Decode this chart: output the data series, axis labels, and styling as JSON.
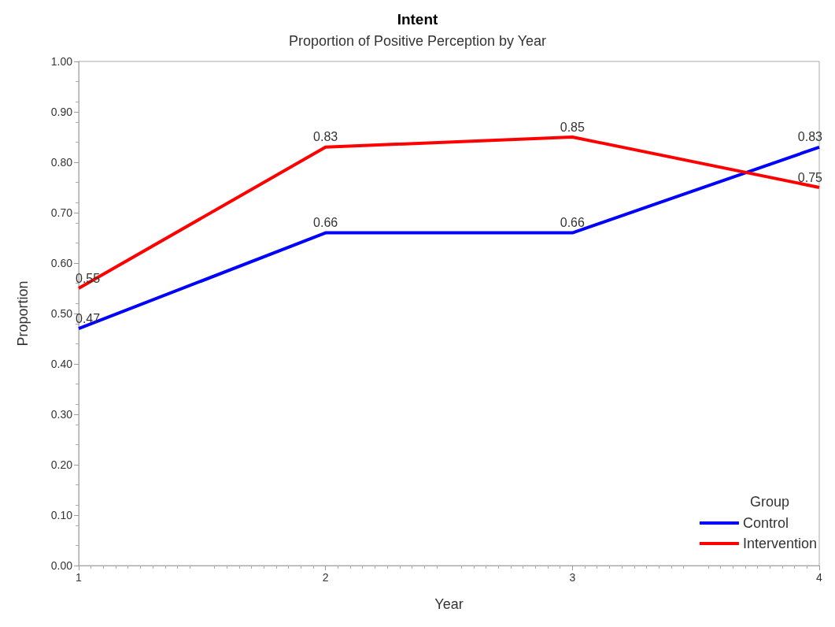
{
  "chart_data": {
    "type": "line",
    "title": "Intent",
    "subtitle": "Proportion of Positive Perception by Year",
    "xlabel": "Year",
    "ylabel": "Proportion",
    "legend_title": "Group",
    "x": [
      1,
      2,
      3,
      4
    ],
    "series": [
      {
        "name": "Control",
        "color": "#0000ff",
        "values": [
          0.47,
          0.66,
          0.66,
          0.83
        ]
      },
      {
        "name": "Intervention",
        "color": "#ff0000",
        "values": [
          0.55,
          0.83,
          0.85,
          0.75
        ]
      }
    ],
    "xlim": [
      1,
      4
    ],
    "xticks": [
      1,
      2,
      3,
      4
    ],
    "ylim": [
      0,
      1
    ],
    "yticks": [
      {
        "value": 0,
        "label": "0.00"
      },
      {
        "value": 0.1,
        "label": "0.10"
      },
      {
        "value": 0.2,
        "label": "0.20"
      },
      {
        "value": 0.3,
        "label": "0.30"
      },
      {
        "value": 0.4,
        "label": "0.40"
      },
      {
        "value": 0.5,
        "label": "0.50"
      },
      {
        "value": 0.6,
        "label": "0.60"
      },
      {
        "value": 0.7,
        "label": "0.70"
      },
      {
        "value": 0.8,
        "label": "0.80"
      },
      {
        "value": 0.9,
        "label": "0.90"
      },
      {
        "value": 1,
        "label": "1.00"
      }
    ],
    "data_labels": true,
    "legend": "bottom right",
    "grid": false,
    "marker": "none",
    "line_style": "solid"
  }
}
